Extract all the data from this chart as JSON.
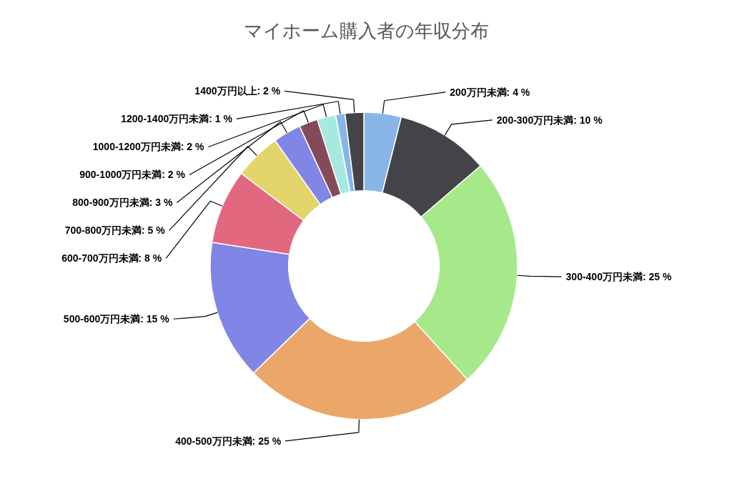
{
  "chart_data": {
    "type": "donut",
    "title": "マイホーム購入者の年収分布",
    "categories": [
      "200万円未満",
      "200-300万円未満",
      "300-400万円未満",
      "400-500万円未満",
      "500-600万円未満",
      "600-700万円未満",
      "700-800万円未満",
      "800-900万円未満",
      "900-1000万円未満",
      "1000-1200万円未満",
      "1200-1400万円未満",
      "1400万円以上"
    ],
    "values": [
      4,
      10,
      25,
      25,
      15,
      8,
      5,
      3,
      2,
      2,
      1,
      2
    ],
    "value_labels": [
      "4 %",
      "10 %",
      "25 %",
      "25 %",
      "15 %",
      "8 %",
      "5 %",
      "3 %",
      "2 %",
      "2 %",
      "1 %",
      "2 %"
    ],
    "colors": [
      "#88b5e8",
      "#444448",
      "#a6e98a",
      "#eba76a",
      "#8085e6",
      "#e26880",
      "#e3d46b",
      "#8085e6",
      "#844a5a",
      "#a7e9e0",
      "#88b5e8",
      "#444448"
    ]
  }
}
